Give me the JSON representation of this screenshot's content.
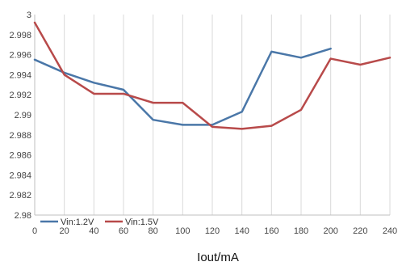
{
  "chart_data": {
    "type": "line",
    "title": "",
    "xlabel": "Iout/mA",
    "ylabel": "",
    "x": [
      0,
      20,
      40,
      60,
      80,
      100,
      120,
      140,
      160,
      180,
      200,
      220,
      240
    ],
    "xlim": [
      0,
      240
    ],
    "ylim": [
      2.98,
      3.0
    ],
    "yticks": [
      2.98,
      2.982,
      2.984,
      2.986,
      2.988,
      2.99,
      2.992,
      2.994,
      2.996,
      2.998,
      3
    ],
    "ytick_labels": [
      "2.98",
      "2.982",
      "2.984",
      "2.986",
      "2.988",
      "2.99",
      "2.992",
      "2.994",
      "2.996",
      "2.998",
      "3"
    ],
    "xtick_labels": [
      "0",
      "20",
      "40",
      "60",
      "80",
      "100",
      "120",
      "140",
      "160",
      "180",
      "200",
      "220",
      "240"
    ],
    "grid": "vertical",
    "legend_position": "bottom-left",
    "series": [
      {
        "name": "Vin:1.2V",
        "color": "#4a77a8",
        "x": [
          0,
          20,
          40,
          60,
          80,
          100,
          120,
          140,
          160,
          180,
          200
        ],
        "values": [
          2.9955,
          2.9942,
          2.9932,
          2.9925,
          2.9895,
          2.989,
          2.989,
          2.9903,
          2.9963,
          2.9957,
          2.9966
        ]
      },
      {
        "name": "Vin:1.5V",
        "color": "#b84a4a",
        "x": [
          0,
          20,
          40,
          60,
          80,
          100,
          120,
          140,
          160,
          180,
          200,
          220,
          240
        ],
        "values": [
          2.9992,
          2.994,
          2.9921,
          2.9921,
          2.9912,
          2.9912,
          2.9888,
          2.9886,
          2.9889,
          2.9905,
          2.9956,
          2.995,
          2.9957
        ]
      }
    ]
  }
}
